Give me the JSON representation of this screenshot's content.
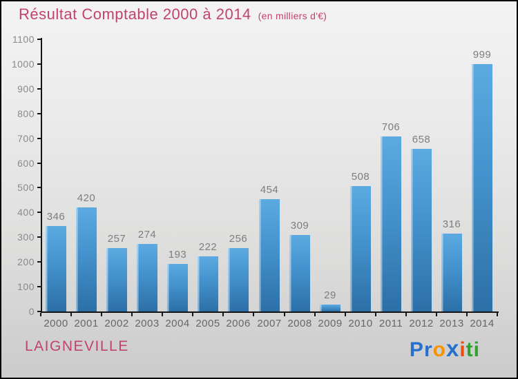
{
  "header": {
    "title": "Résultat Comptable 2000 à 2014",
    "subtitle": "(en milliers d'€)"
  },
  "chart_data": {
    "type": "bar",
    "title": "Résultat Comptable 2000 à 2014 (en milliers d'€)",
    "categories": [
      "2000",
      "2001",
      "2002",
      "2003",
      "2004",
      "2005",
      "2006",
      "2007",
      "2008",
      "2009",
      "2010",
      "2011",
      "2012",
      "2013",
      "2014"
    ],
    "values": [
      346,
      420,
      257,
      274,
      193,
      222,
      256,
      454,
      309,
      29,
      508,
      706,
      658,
      316,
      999
    ],
    "xlabel": "",
    "ylabel": "",
    "ylim": [
      0,
      1100
    ],
    "ytick_step": 100,
    "grid": false,
    "legend": null,
    "bar_color_top": "#5caae1",
    "bar_color_bottom": "#2c6fa7",
    "value_label_color": "#7d7d7d",
    "axis_color": "#141414"
  },
  "footer": {
    "place": "LAIGNEVILLE",
    "accent_color": "#c1426d",
    "logo": {
      "name": "Proxiti",
      "letters": [
        {
          "ch": "P",
          "color": "#2470cc",
          "big": false
        },
        {
          "ch": "r",
          "color": "#2470cc",
          "big": false
        },
        {
          "ch": "o",
          "color": "#f59300",
          "big": false
        },
        {
          "ch": "x",
          "color": "#2470cc",
          "big": true
        },
        {
          "ch": "i",
          "color": "#e84d0c",
          "big": false
        },
        {
          "ch": "t",
          "color": "#2fa12d",
          "big": false
        },
        {
          "ch": "i",
          "color": "#2fa12d",
          "big": false
        }
      ]
    }
  }
}
